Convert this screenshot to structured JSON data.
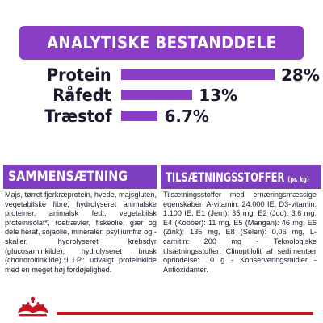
{
  "analysis": {
    "title": "ANALYTISKE BESTANDDELE",
    "rows": [
      {
        "label": "Protein",
        "value": "28%",
        "percent": 28
      },
      {
        "label": "Råfedt",
        "value": "13%",
        "percent": 13
      },
      {
        "label": "Træstof",
        "value": "6.7%",
        "percent": 6.7
      }
    ]
  },
  "composition": {
    "title": "SAMMENSÆTNING",
    "text": "Majs, tørret fjerkræprotein, hvede, majsgluten, vegetabilske fibre, hydrolyseret animalske proteiner, animalsk fedt, vegetabilsk proteinisolat*, roetrævler, fiskeolie, gær og dele heraf, sojaolie, mineraler, psylliumfrø og -skaller, hydrolyseret krebsdyr (glucosaminkilde), hydrolyseret brusk (chondroitinkilde).*L.I.P.: udvalgt proteinkilde med en meget høj fordøjelighed."
  },
  "additives": {
    "title": "TILSÆTNINGSSTOFFER",
    "unit": "(pr. kg)",
    "text": "Tilsætningsstoffer med ernæringsmæssige egenskaber: A-vitamin: 24.000 IE, D3-vitamin: 1.100 IE, E1 (Jern): 35 mg, E2 (Jod): 3,6 mg, E4 (Kobber): 11 mg, E5 (Mangan): 46 mg, E6 (Zink): 135 mg, E8 (Selen): 0,06 mg, L-carnitin: 200 mg - Teknologiske tilsætningsstoffer: Clinoptilolit af sedimentær oprindelse: 10 g - Konserveringsmidler - Antioxidanter."
  },
  "colors": {
    "accent": "#8a3ec6",
    "panel": "#7e3ec0",
    "brand_red": "#c6161d"
  },
  "logo": {
    "icon": "royal-canin-crown-icon"
  }
}
